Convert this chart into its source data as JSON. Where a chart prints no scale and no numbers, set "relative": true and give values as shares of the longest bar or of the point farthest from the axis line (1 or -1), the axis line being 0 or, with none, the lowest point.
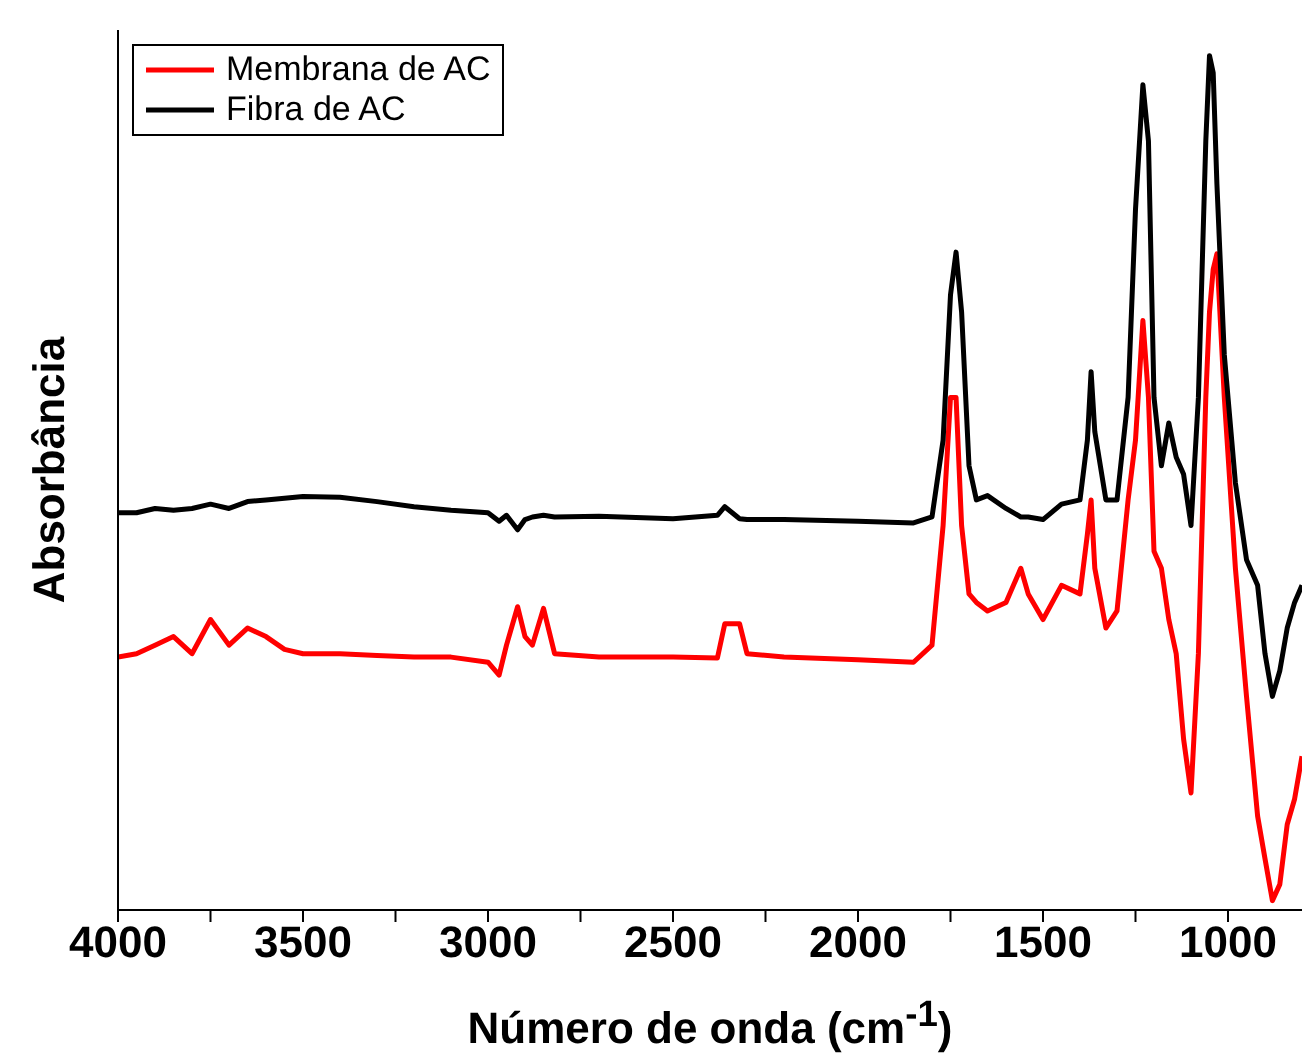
{
  "chart_data": {
    "type": "line",
    "relative": true,
    "xlabel": "Número de onda (cm$^{-1}$)",
    "ylabel": "Absorbância",
    "xlim": [
      4000,
      800
    ],
    "xticks": [
      4000,
      {
        "value": 3750,
        "label": null
      },
      3500,
      {
        "value": 3250,
        "label": null
      },
      3000,
      {
        "value": 2750,
        "label": null
      },
      2500,
      {
        "value": 2250,
        "label": null
      },
      2000,
      {
        "value": 1750,
        "label": null
      },
      1500,
      {
        "value": 1250,
        "label": null
      },
      1000
    ],
    "x": [
      4000,
      3950,
      3900,
      3850,
      3800,
      3750,
      3700,
      3650,
      3600,
      3550,
      3500,
      3400,
      3300,
      3200,
      3100,
      3000,
      2970,
      2950,
      2920,
      2900,
      2880,
      2850,
      2820,
      2700,
      2500,
      2380,
      2360,
      2340,
      2320,
      2300,
      2200,
      2000,
      1850,
      1800,
      1770,
      1750,
      1735,
      1720,
      1700,
      1680,
      1650,
      1600,
      1560,
      1540,
      1500,
      1450,
      1400,
      1380,
      1370,
      1360,
      1330,
      1300,
      1270,
      1250,
      1230,
      1215,
      1200,
      1180,
      1160,
      1140,
      1120,
      1100,
      1080,
      1060,
      1050,
      1040,
      1030,
      1010,
      980,
      950,
      920,
      900,
      880,
      860,
      840,
      820,
      800
    ],
    "series": [
      {
        "name": "Membrana de AC",
        "color": "#ff0000",
        "values": [
          0.296,
          0.3,
          0.31,
          0.32,
          0.3,
          0.34,
          0.31,
          0.33,
          0.32,
          0.305,
          0.3,
          0.3,
          0.298,
          0.296,
          0.296,
          0.29,
          0.275,
          0.31,
          0.355,
          0.32,
          0.31,
          0.353,
          0.3,
          0.296,
          0.296,
          0.295,
          0.335,
          0.335,
          0.335,
          0.3,
          0.296,
          0.293,
          0.29,
          0.31,
          0.45,
          0.6,
          0.6,
          0.45,
          0.37,
          0.36,
          0.35,
          0.36,
          0.4,
          0.37,
          0.34,
          0.38,
          0.37,
          0.44,
          0.48,
          0.4,
          0.33,
          0.35,
          0.48,
          0.55,
          0.69,
          0.6,
          0.42,
          0.4,
          0.34,
          0.3,
          0.2,
          0.137,
          0.3,
          0.6,
          0.7,
          0.75,
          0.768,
          0.6,
          0.4,
          0.25,
          0.11,
          0.06,
          0.011,
          0.03,
          0.1,
          0.13,
          0.18
        ]
      },
      {
        "name": "Fibra de AC",
        "color": "#000000",
        "values": [
          0.465,
          0.465,
          0.47,
          0.468,
          0.47,
          0.475,
          0.47,
          0.478,
          0.48,
          0.482,
          0.484,
          0.483,
          0.478,
          0.472,
          0.468,
          0.465,
          0.455,
          0.462,
          0.445,
          0.457,
          0.46,
          0.462,
          0.46,
          0.461,
          0.458,
          0.462,
          0.472,
          0.465,
          0.458,
          0.457,
          0.457,
          0.455,
          0.453,
          0.46,
          0.55,
          0.72,
          0.77,
          0.7,
          0.52,
          0.48,
          0.485,
          0.47,
          0.46,
          0.46,
          0.457,
          0.475,
          0.48,
          0.55,
          0.63,
          0.56,
          0.48,
          0.48,
          0.6,
          0.82,
          0.966,
          0.9,
          0.6,
          0.52,
          0.57,
          0.53,
          0.51,
          0.45,
          0.6,
          0.9,
          1,
          0.98,
          0.85,
          0.65,
          0.5,
          0.41,
          0.38,
          0.3,
          0.25,
          0.28,
          0.33,
          0.36,
          0.38
        ]
      }
    ],
    "legend": "top left"
  }
}
